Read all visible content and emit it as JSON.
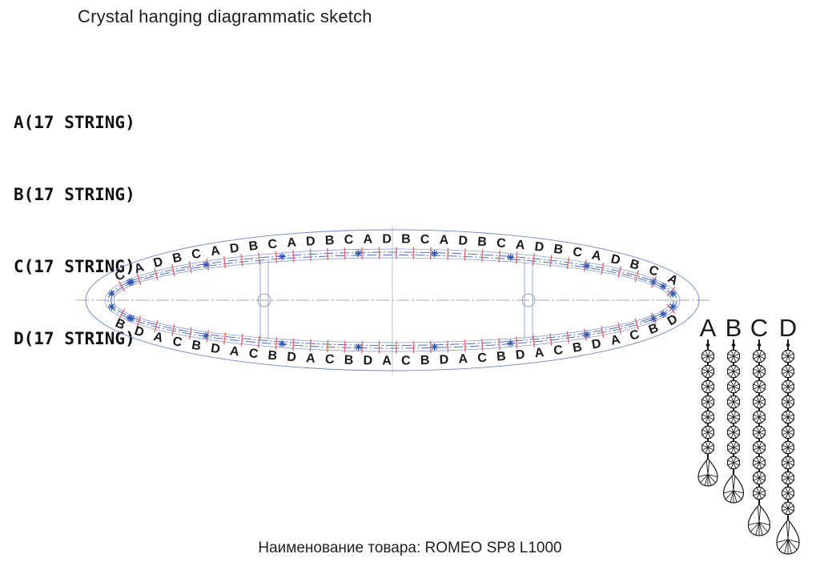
{
  "title": "Crystal hanging diagrammatic sketch",
  "legend": {
    "items": [
      {
        "letter": "A",
        "text": "A(17 STRING)"
      },
      {
        "letter": "B",
        "text": "B(17 STRING)"
      },
      {
        "letter": "C",
        "text": "C(17 STRING)"
      },
      {
        "letter": "D",
        "text": "D(17 STRING)"
      }
    ]
  },
  "diagram": {
    "top_letters": [
      "C",
      "A",
      "D",
      "B",
      "C",
      "A",
      "D",
      "B",
      "C",
      "A",
      "D",
      "B",
      "C",
      "A",
      "D",
      "B",
      "C",
      "A",
      "D",
      "B",
      "C",
      "A",
      "D",
      "B",
      "C",
      "A",
      "D",
      "B",
      "C",
      "A"
    ],
    "bottom_letters": [
      "B",
      "D",
      "A",
      "C",
      "B",
      "D",
      "A",
      "C",
      "B",
      "D",
      "A",
      "C",
      "B",
      "D",
      "A",
      "C",
      "B",
      "D",
      "A",
      "C",
      "B",
      "D",
      "A",
      "C",
      "B",
      "D",
      "A",
      "C",
      "B",
      "D"
    ],
    "colors": {
      "outline_blue": "#6b85c8",
      "band_blue": "#4f6cba",
      "tick_red": "#e2686c",
      "marker_blue": "#3056b2",
      "centerline_gray": "#a6a6a6",
      "ink": "#1a1a1a"
    }
  },
  "chains": {
    "labels": [
      "A",
      "B",
      "C",
      "D"
    ],
    "bead_counts": [
      7,
      8,
      10,
      11
    ]
  },
  "footer": {
    "text": "Наименование товара: ROMEO SP8 L1000"
  }
}
